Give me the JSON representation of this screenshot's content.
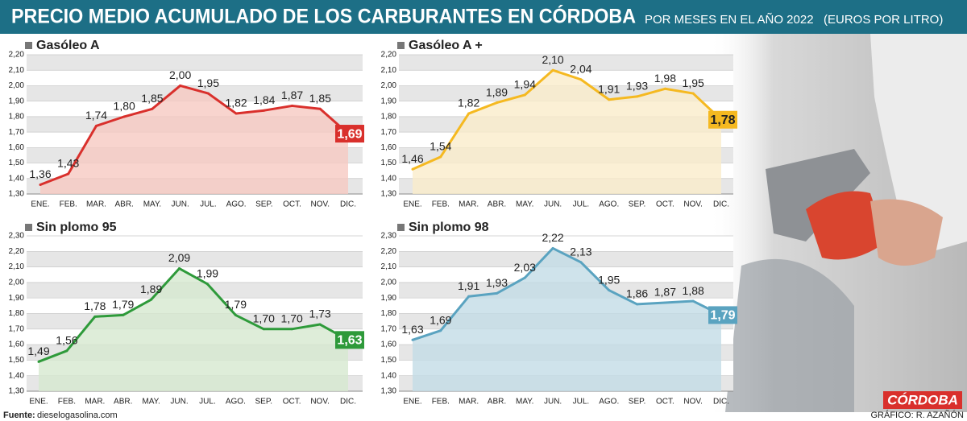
{
  "title": "PRECIO MEDIO ACUMULADO DE LOS CARBURANTES EN CÓRDOBA",
  "subtitle": "POR MESES EN EL AÑO 2022",
  "unit": "(EUROS POR LITRO)",
  "source_label": "Fuente:",
  "source": "dieselogasolina.com",
  "credit": "GRÁFICO: R. AZAÑÓN",
  "brand": "CÓRDOBA",
  "chart_data": [
    {
      "type": "line",
      "title": "Gasóleo A",
      "color": "#d9302c",
      "fill": "#f6c9c2",
      "categories": [
        "ENE.",
        "FEB.",
        "MAR.",
        "ABR.",
        "MAY.",
        "JUN.",
        "JUL.",
        "AGO.",
        "SEP.",
        "OCT.",
        "NOV.",
        "DIC."
      ],
      "values": [
        1.36,
        1.43,
        1.74,
        1.8,
        1.85,
        2.0,
        1.95,
        1.82,
        1.84,
        1.87,
        1.85,
        1.69
      ],
      "value_labels": [
        "1,36",
        "1,43",
        "1,74",
        "1,80",
        "1,85",
        "2,00",
        "1,95",
        "1,82",
        "1,84",
        "1,87",
        "1,85",
        "1,69"
      ],
      "ylim": [
        1.3,
        2.2
      ],
      "yticks": [
        {
          "value": 1.3,
          "label": "1,30"
        },
        {
          "value": 1.4,
          "label": "1,40"
        },
        {
          "value": 1.5,
          "label": "1,50"
        },
        {
          "value": 1.6,
          "label": "1,60"
        },
        {
          "value": 1.7,
          "label": "1,70"
        },
        {
          "value": 1.8,
          "label": "1,80"
        },
        {
          "value": 1.9,
          "label": "1,90"
        },
        {
          "value": 2.0,
          "label": "2,00"
        },
        {
          "value": 2.1,
          "label": "2,10"
        },
        {
          "value": 2.2,
          "label": "2,20"
        }
      ]
    },
    {
      "type": "line",
      "title": "Gasóleo A +",
      "color": "#f5b921",
      "fill": "#faeccb",
      "categories": [
        "ENE.",
        "FEB.",
        "MAR.",
        "ABR.",
        "MAY.",
        "JUN.",
        "JUL.",
        "AGO.",
        "SEP.",
        "OCT.",
        "NOV.",
        "DIC."
      ],
      "values": [
        1.46,
        1.54,
        1.82,
        1.89,
        1.94,
        2.1,
        2.04,
        1.91,
        1.93,
        1.98,
        1.95,
        1.78
      ],
      "value_labels": [
        "1,46",
        "1,54",
        "1,82",
        "1,89",
        "1,94",
        "2,10",
        "2,04",
        "1,91",
        "1,93",
        "1,98",
        "1,95",
        "1,78"
      ],
      "ylim": [
        1.3,
        2.2
      ],
      "yticks": [
        {
          "value": 1.3,
          "label": "1,30"
        },
        {
          "value": 1.4,
          "label": "1,40"
        },
        {
          "value": 1.5,
          "label": "1,50"
        },
        {
          "value": 1.6,
          "label": "1,60"
        },
        {
          "value": 1.7,
          "label": "1,70"
        },
        {
          "value": 1.8,
          "label": "1,80"
        },
        {
          "value": 1.9,
          "label": "1,90"
        },
        {
          "value": 2.0,
          "label": "2,00"
        },
        {
          "value": 2.1,
          "label": "2,10"
        },
        {
          "value": 2.2,
          "label": "2,20"
        }
      ]
    },
    {
      "type": "line",
      "title": "Sin plomo 95",
      "color": "#2e9a3a",
      "fill": "#d6e8cf",
      "categories": [
        "ENE.",
        "FEB.",
        "MAR.",
        "ABR.",
        "MAY.",
        "JUN.",
        "JUL.",
        "AGO.",
        "SEP.",
        "OCT.",
        "NOV.",
        "DIC."
      ],
      "values": [
        1.49,
        1.56,
        1.78,
        1.79,
        1.89,
        2.09,
        1.99,
        1.79,
        1.7,
        1.7,
        1.73,
        1.63
      ],
      "value_labels": [
        "1,49",
        "1,56",
        "1,78",
        "1,79",
        "1,89",
        "2,09",
        "1,99",
        "1,79",
        "1,70",
        "1,70",
        "1,73",
        "1,63"
      ],
      "ylim": [
        1.3,
        2.3
      ],
      "yticks": [
        {
          "value": 1.3,
          "label": "1,30"
        },
        {
          "value": 1.4,
          "label": "1,40"
        },
        {
          "value": 1.5,
          "label": "1,50"
        },
        {
          "value": 1.6,
          "label": "1,60"
        },
        {
          "value": 1.7,
          "label": "1,70"
        },
        {
          "value": 1.8,
          "label": "1,80"
        },
        {
          "value": 1.9,
          "label": "1,90"
        },
        {
          "value": 2.0,
          "label": "2,00"
        },
        {
          "value": 2.1,
          "label": "2,10"
        },
        {
          "value": 2.2,
          "label": "2,20"
        },
        {
          "value": 2.3,
          "label": "2,30"
        }
      ]
    },
    {
      "type": "line",
      "title": "Sin plomo 98",
      "color": "#5aa3c0",
      "fill": "#c3dce6",
      "categories": [
        "ENE.",
        "FEB.",
        "MAR.",
        "ABR.",
        "MAY.",
        "JUN.",
        "JUL.",
        "AGO.",
        "SEP.",
        "OCT.",
        "NOV.",
        "DIC."
      ],
      "values": [
        1.63,
        1.69,
        1.91,
        1.93,
        2.03,
        2.22,
        2.13,
        1.95,
        1.86,
        1.87,
        1.88,
        1.79
      ],
      "value_labels": [
        "1,63",
        "1,69",
        "1,91",
        "1,93",
        "2,03",
        "2,22",
        "2,13",
        "1,95",
        "1,86",
        "1,87",
        "1,88",
        "1,79"
      ],
      "ylim": [
        1.3,
        2.3
      ],
      "yticks": [
        {
          "value": 1.3,
          "label": "1,30"
        },
        {
          "value": 1.4,
          "label": "1,40"
        },
        {
          "value": 1.5,
          "label": "1,50"
        },
        {
          "value": 1.6,
          "label": "1,60"
        },
        {
          "value": 1.7,
          "label": "1,70"
        },
        {
          "value": 1.8,
          "label": "1,80"
        },
        {
          "value": 1.9,
          "label": "1,90"
        },
        {
          "value": 2.0,
          "label": "2,00"
        },
        {
          "value": 2.1,
          "label": "2,10"
        },
        {
          "value": 2.2,
          "label": "2,20"
        },
        {
          "value": 2.3,
          "label": "2,30"
        }
      ]
    }
  ]
}
